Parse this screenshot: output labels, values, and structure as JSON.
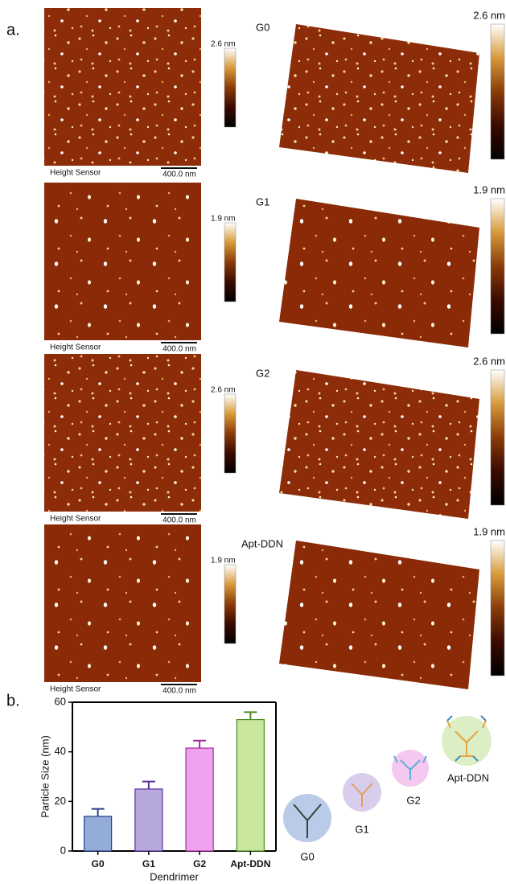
{
  "panel_a": {
    "label": "a.",
    "rows": [
      {
        "label": "G0",
        "scale_max": "2.6 nm",
        "sensor": "Height Sensor",
        "scale_bar": "400.0 nm"
      },
      {
        "label": "G1",
        "scale_max": "1.9 nm",
        "sensor": "Height Sensor",
        "scale_bar": "400.0 nm"
      },
      {
        "label": "G2",
        "scale_max": "2.6 nm",
        "sensor": "Height Sensor",
        "scale_bar": "400.0 nm"
      },
      {
        "label": "Apt-DDN",
        "scale_max": "1.9 nm",
        "sensor": "Height Sensor",
        "scale_bar": "400.0 nm"
      }
    ]
  },
  "panel_b": {
    "label": "b.",
    "chart_data": {
      "type": "bar",
      "x_label": "Dendrimer",
      "y_label": "Particle Size (nm)",
      "categories": [
        "G0",
        "G1",
        "G2",
        "Apt-DDN"
      ],
      "values": [
        14,
        25,
        41.5,
        53
      ],
      "errors": [
        3,
        3,
        3,
        3
      ],
      "colors": [
        "#93acd8",
        "#b6a7dc",
        "#efa3ef",
        "#c8e69c"
      ],
      "error_colors": [
        "#2b3f8f",
        "#5a2f9a",
        "#a12aa0",
        "#4e8a22"
      ],
      "ylim": [
        0,
        60
      ],
      "yticks": [
        0,
        20,
        40,
        60
      ]
    },
    "diagram_labels": [
      "G0",
      "G1",
      "G2",
      "Apt-DDN"
    ]
  }
}
